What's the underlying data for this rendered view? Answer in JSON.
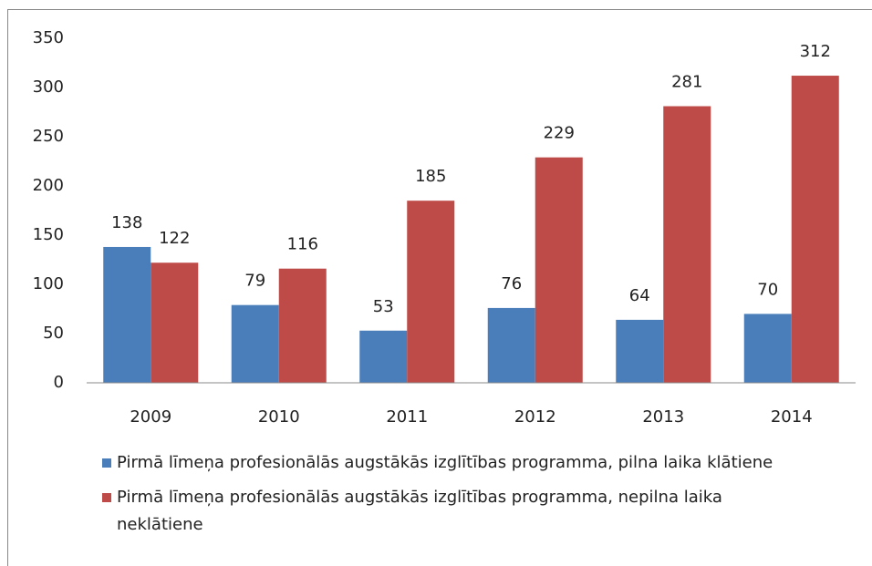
{
  "chart_data": {
    "type": "bar",
    "categories": [
      "2009",
      "2010",
      "2011",
      "2012",
      "2013",
      "2014"
    ],
    "series": [
      {
        "name": "Pirmā līmeņa profesionālās augstākās izglītības programma, pilna laika klātiene",
        "color": "#4a7ebb",
        "values": [
          138,
          79,
          53,
          76,
          64,
          70
        ]
      },
      {
        "name": "Pirmā līmeņa profesionālās augstākās izglītības programma, nepilna laika neklātiene",
        "color": "#be4b48",
        "values": [
          122,
          116,
          185,
          229,
          281,
          312
        ]
      }
    ],
    "ylim": [
      0,
      350
    ],
    "yticks": [
      0,
      50,
      100,
      150,
      200,
      250,
      300,
      350
    ],
    "grid": false,
    "legend": "bottom"
  }
}
